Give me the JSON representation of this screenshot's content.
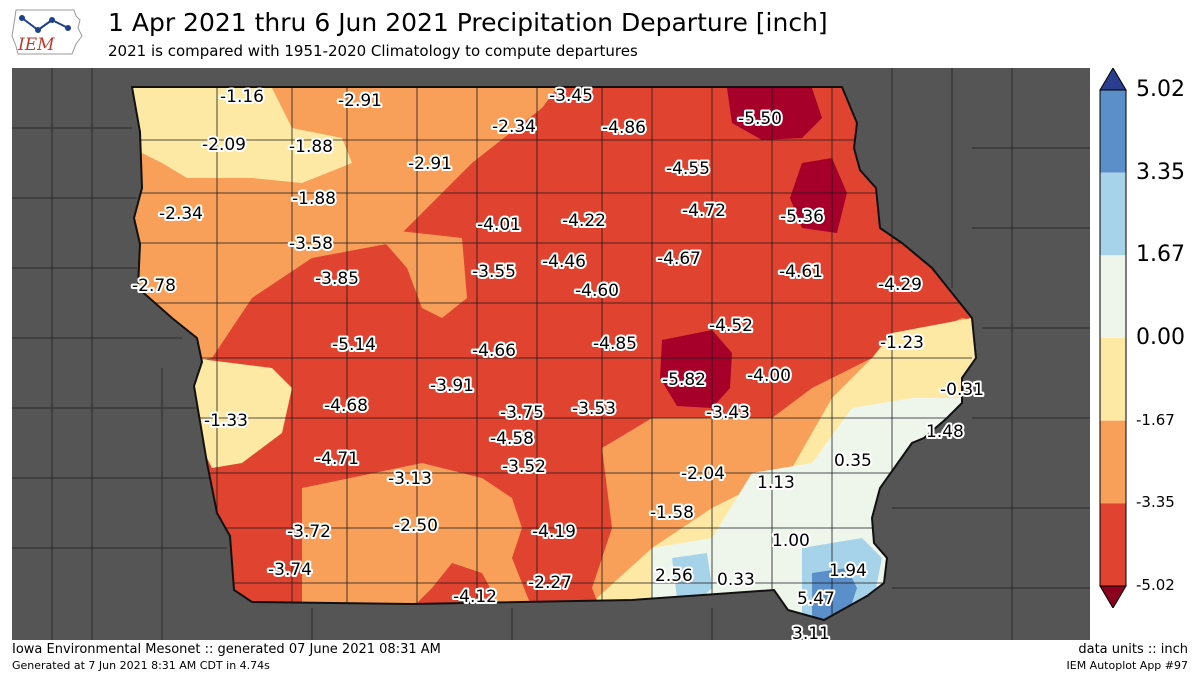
{
  "header": {
    "logo_text": "IEM",
    "title": "1 Apr 2021 thru 6 Jun 2021 Precipitation Departure [inch]",
    "subtitle": "2021 is compared with 1951-2020 Climatology to compute departures"
  },
  "colorbar": {
    "labels": [
      "5.02",
      "3.35",
      "1.67",
      "0.00",
      "-1.67",
      "-3.35",
      "-5.02"
    ],
    "colors": [
      "#3d5fa8",
      "#5b8fc9",
      "#a6d3ea",
      "#eef6ec",
      "#fde9a3",
      "#f8a05a",
      "#e0432f",
      "#a6002a"
    ]
  },
  "colors": {
    "background_outside": "#555555",
    "band_lt_neg_5": "#a6002a",
    "band_neg_5_to_neg_3_35": "#e0432f",
    "band_neg_3_35_to_neg_1_67": "#f8a05a",
    "band_neg_1_67_to_0": "#fde9a3",
    "band_0_to_1_67": "#eef6ec",
    "band_1_67_to_3_35": "#a6d3ea",
    "band_3_35_to_5_02": "#5b8fc9"
  },
  "stations": [
    {
      "label": "-1.16"
    },
    {
      "label": "-2.91"
    },
    {
      "label": "-3.45"
    },
    {
      "label": "-5.50"
    },
    {
      "label": "-2.09"
    },
    {
      "label": "-1.88"
    },
    {
      "label": "-2.34"
    },
    {
      "label": "-4.86"
    },
    {
      "label": "-2.91"
    },
    {
      "label": "-4.55"
    },
    {
      "label": "-1.88"
    },
    {
      "label": "-2.34"
    },
    {
      "label": "-4.01"
    },
    {
      "label": "-4.22"
    },
    {
      "label": "-4.72"
    },
    {
      "label": "-5.36"
    },
    {
      "label": "-3.58"
    },
    {
      "label": "-3.85"
    },
    {
      "label": "-3.55"
    },
    {
      "label": "-4.46"
    },
    {
      "label": "-4.67"
    },
    {
      "label": "-4.61"
    },
    {
      "label": "-4.29"
    },
    {
      "label": "-2.78"
    },
    {
      "label": "-4.60"
    },
    {
      "label": "-4.52"
    },
    {
      "label": "-5.14"
    },
    {
      "label": "-4.66"
    },
    {
      "label": "-4.85"
    },
    {
      "label": "-1.23"
    },
    {
      "label": "-5.82"
    },
    {
      "label": "-4.00"
    },
    {
      "label": "-3.91"
    },
    {
      "label": "-0.31"
    },
    {
      "label": "-4.68"
    },
    {
      "label": "-3.75"
    },
    {
      "label": "-3.53"
    },
    {
      "label": "-3.43"
    },
    {
      "label": "-1.33"
    },
    {
      "label": "1.48"
    },
    {
      "label": "-4.58"
    },
    {
      "label": "-4.71"
    },
    {
      "label": "-3.52"
    },
    {
      "label": "0.35"
    },
    {
      "label": "-3.13"
    },
    {
      "label": "-2.04"
    },
    {
      "label": "1.13"
    },
    {
      "label": "-3.72"
    },
    {
      "label": "-2.50"
    },
    {
      "label": "-4.19"
    },
    {
      "label": "-1.58"
    },
    {
      "label": "1.00"
    },
    {
      "label": "-3.74"
    },
    {
      "label": "2.56"
    },
    {
      "label": "0.33"
    },
    {
      "label": "1.94"
    },
    {
      "label": "-4.12"
    },
    {
      "label": "-2.27"
    },
    {
      "label": "5.47"
    },
    {
      "label": "3.11"
    }
  ],
  "footer": {
    "left_line1": "Iowa Environmental Mesonet :: generated 07 June 2021 08:31 AM",
    "left_line2": "Generated at 7 Jun 2021 8:31 AM CDT in 4.74s",
    "right_line1": "data units :: inch",
    "right_line2": "IEM Autoplot App #97"
  }
}
